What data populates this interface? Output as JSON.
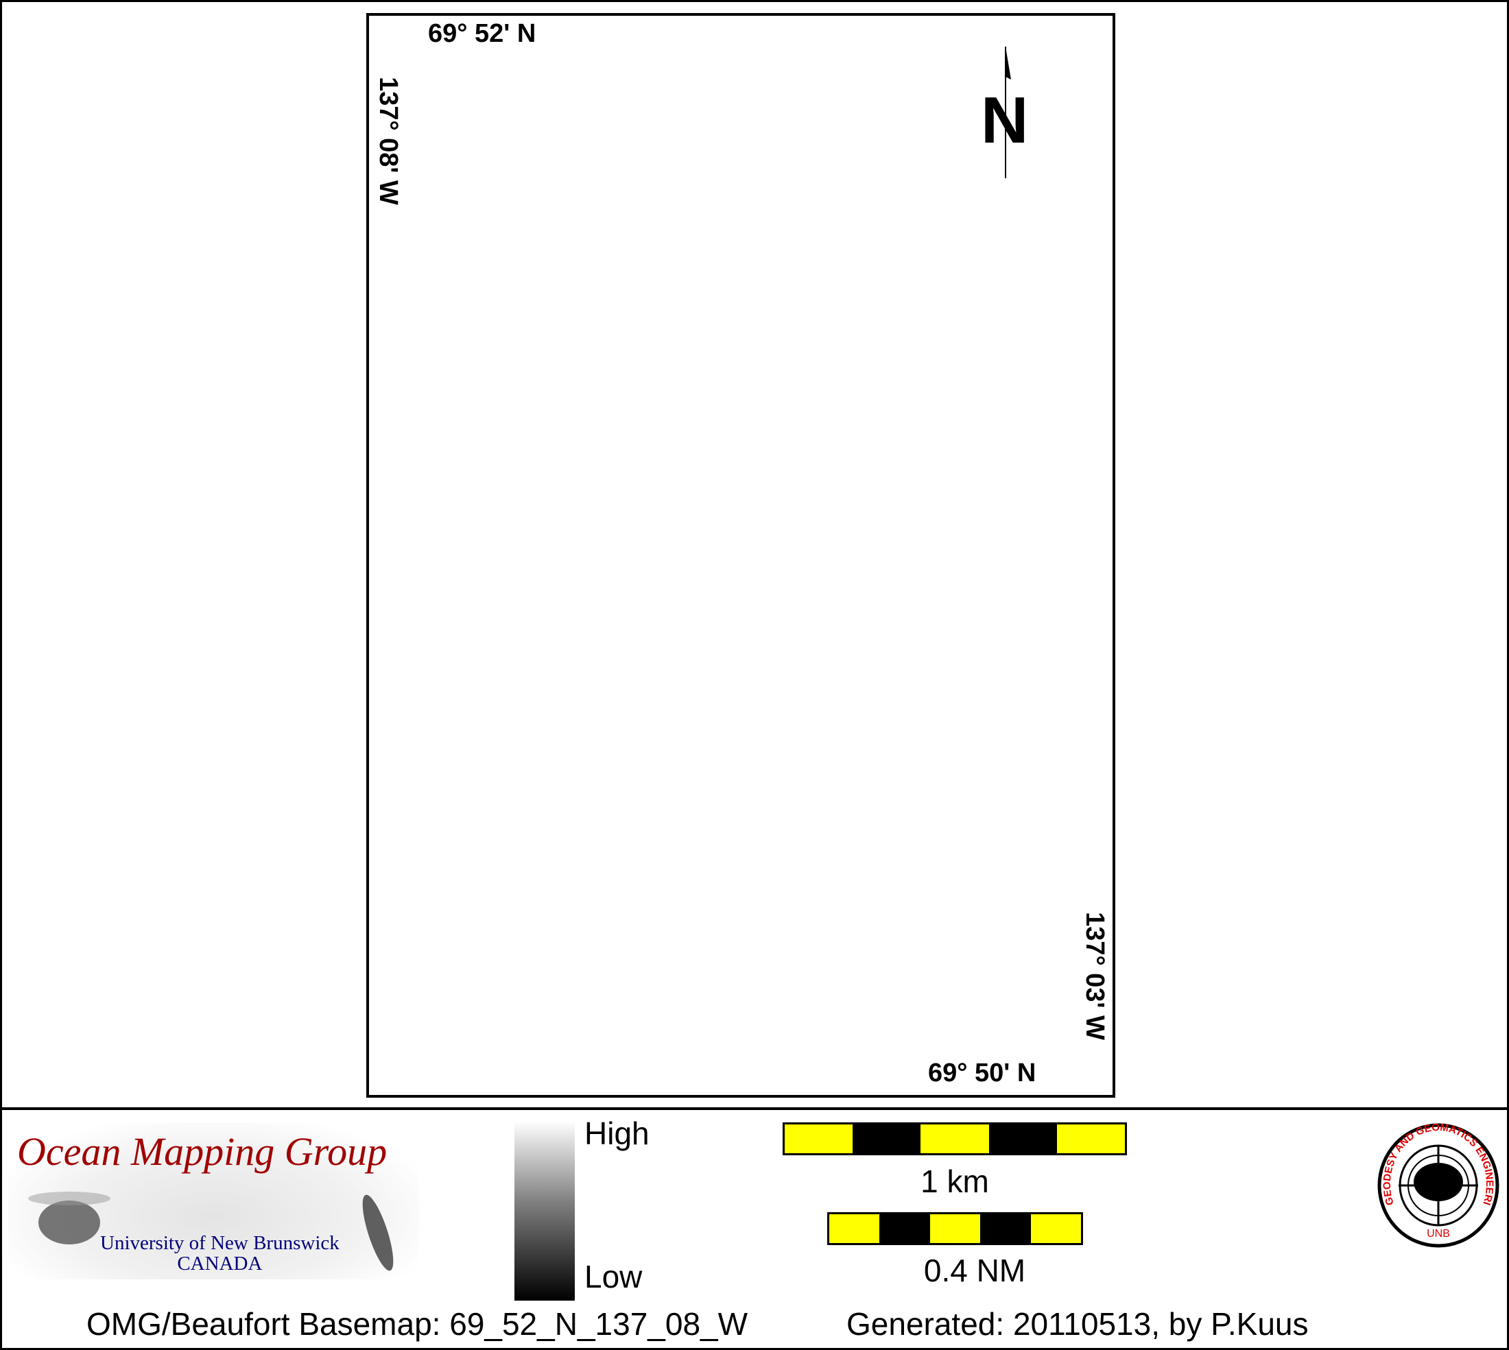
{
  "map": {
    "top_left_lat": "69° 52' N",
    "top_left_lon": "137° 08' W",
    "bottom_right_lat": "69° 50' N",
    "bottom_right_lon": "137° 03' W",
    "north_arrow_label": "N"
  },
  "legend": {
    "high_label": "High",
    "low_label": "Low"
  },
  "scale_bars": [
    {
      "label": "1 km",
      "colors": [
        "#ffff00",
        "#000000",
        "#ffff00",
        "#000000",
        "#ffff00"
      ]
    },
    {
      "label": "0.4 NM",
      "colors": [
        "#ffff00",
        "#000000",
        "#ffff00",
        "#000000",
        "#ffff00"
      ]
    }
  ],
  "logos": {
    "omg_title": "Ocean Mapping Group",
    "omg_university": "University of New Brunswick",
    "omg_country": "CANADA",
    "seal_text": "GEODESY AND GEOMATICS ENGINEERING",
    "seal_sub": "UNB"
  },
  "footer": {
    "basemap": "OMG/Beaufort Basemap: 69_52_N_137_08_W",
    "generated": "Generated: 20110513, by P.Kuus"
  },
  "colors": {
    "brand_red": "#a00000",
    "brand_blue": "#00007a",
    "scale_yellow": "#ffff00"
  }
}
